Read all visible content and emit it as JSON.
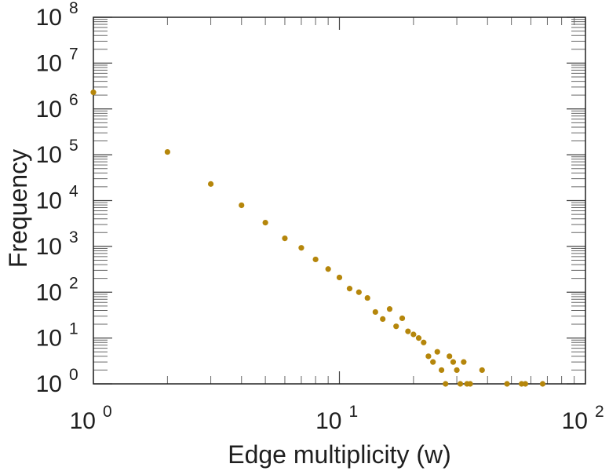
{
  "chart_data": {
    "type": "scatter",
    "xlabel": "Edge multiplicity (w)",
    "ylabel": "Frequency",
    "x_scale": "log",
    "y_scale": "log",
    "xlim": [
      1,
      100
    ],
    "ylim": [
      1,
      100000000
    ],
    "x_ticks": [
      {
        "base": "10",
        "exp": "0",
        "value": 1
      },
      {
        "base": "10",
        "exp": "1",
        "value": 10
      },
      {
        "base": "10",
        "exp": "2",
        "value": 100
      }
    ],
    "y_ticks": [
      {
        "base": "10",
        "exp": "0",
        "value": 1
      },
      {
        "base": "10",
        "exp": "1",
        "value": 10
      },
      {
        "base": "10",
        "exp": "2",
        "value": 100
      },
      {
        "base": "10",
        "exp": "3",
        "value": 1000
      },
      {
        "base": "10",
        "exp": "4",
        "value": 10000
      },
      {
        "base": "10",
        "exp": "5",
        "value": 100000
      },
      {
        "base": "10",
        "exp": "6",
        "value": 1000000
      },
      {
        "base": "10",
        "exp": "7",
        "value": 10000000
      },
      {
        "base": "10",
        "exp": "8",
        "value": 100000000
      }
    ],
    "marker_color": "#b5860b",
    "series": [
      {
        "points": [
          [
            1,
            2300000
          ],
          [
            2,
            115000
          ],
          [
            3,
            23000
          ],
          [
            4,
            7900
          ],
          [
            5,
            3300
          ],
          [
            6,
            1500
          ],
          [
            7,
            930
          ],
          [
            8,
            520
          ],
          [
            9,
            320
          ],
          [
            10,
            210
          ],
          [
            11,
            120
          ],
          [
            12,
            100
          ],
          [
            13,
            75
          ],
          [
            14,
            37
          ],
          [
            15,
            26
          ],
          [
            16,
            43
          ],
          [
            17,
            18
          ],
          [
            18,
            27
          ],
          [
            19,
            14
          ],
          [
            20,
            12
          ],
          [
            21,
            10
          ],
          [
            22,
            8
          ],
          [
            23,
            4
          ],
          [
            24,
            3
          ],
          [
            25,
            5
          ],
          [
            26,
            2
          ],
          [
            27,
            1
          ],
          [
            28,
            4
          ],
          [
            29,
            3
          ],
          [
            30,
            2
          ],
          [
            31,
            1
          ],
          [
            32,
            3
          ],
          [
            33,
            1
          ],
          [
            34,
            1
          ],
          [
            38,
            2
          ],
          [
            48,
            1
          ],
          [
            55,
            1
          ],
          [
            57,
            1
          ],
          [
            67,
            1
          ]
        ]
      }
    ]
  }
}
